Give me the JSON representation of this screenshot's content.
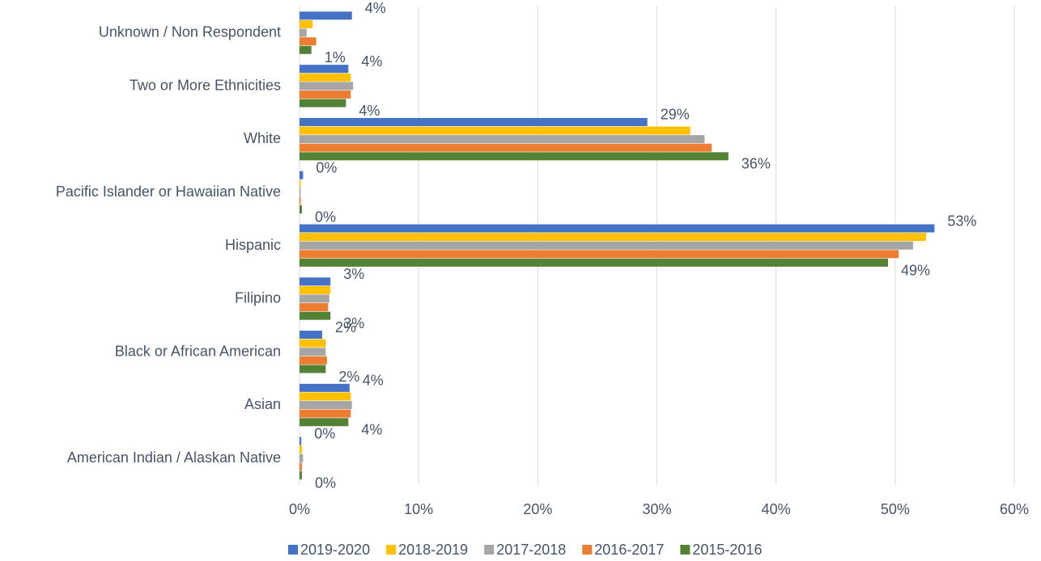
{
  "chart_data": {
    "type": "bar",
    "orientation": "horizontal",
    "categories": [
      "Unknown / Non Respondent",
      "Two or More Ethnicities",
      "White",
      "Pacific Islander or Hawaiian Native",
      "Hispanic",
      "Filipino",
      "Black or African American",
      "Asian",
      "American Indian / Alaskan Native"
    ],
    "series": [
      {
        "name": "2019-2020",
        "color": "#4472c4",
        "values": [
          4.4,
          4.1,
          29.2,
          0.3,
          53.3,
          2.6,
          1.9,
          4.2,
          0.15
        ],
        "value_labels": [
          "4%",
          "4%",
          "29%",
          "0%",
          "53%",
          "3%",
          "2%",
          "4%",
          "0%"
        ]
      },
      {
        "name": "2018-2019",
        "color": "#ffc000",
        "values": [
          1.1,
          4.3,
          32.8,
          0.1,
          52.6,
          2.6,
          2.2,
          4.3,
          0.2
        ]
      },
      {
        "name": "2017-2018",
        "color": "#a5a5a5",
        "values": [
          0.6,
          4.5,
          34.0,
          0.1,
          51.5,
          2.5,
          2.2,
          4.4,
          0.3
        ]
      },
      {
        "name": "2016-2017",
        "color": "#ed7d31",
        "values": [
          1.4,
          4.3,
          34.6,
          0.1,
          50.3,
          2.4,
          2.3,
          4.3,
          0.2
        ]
      },
      {
        "name": "2015-2016",
        "color": "#548235",
        "values": [
          1.0,
          3.9,
          36.0,
          0.2,
          49.4,
          2.6,
          2.2,
          4.1,
          0.2
        ],
        "value_labels": [
          "1%",
          "4%",
          "36%",
          "0%",
          "49%",
          "3%",
          "2%",
          "4%",
          "0%"
        ]
      }
    ],
    "xlim": [
      0,
      60
    ],
    "xticks": [
      {
        "value": 0,
        "label": "0%"
      },
      {
        "value": 10,
        "label": "10%"
      },
      {
        "value": 20,
        "label": "20%"
      },
      {
        "value": 30,
        "label": "30%"
      },
      {
        "value": 40,
        "label": "40%"
      },
      {
        "value": 50,
        "label": "50%"
      },
      {
        "value": 60,
        "label": "60%"
      }
    ],
    "grid": true,
    "legend": "bottom"
  }
}
